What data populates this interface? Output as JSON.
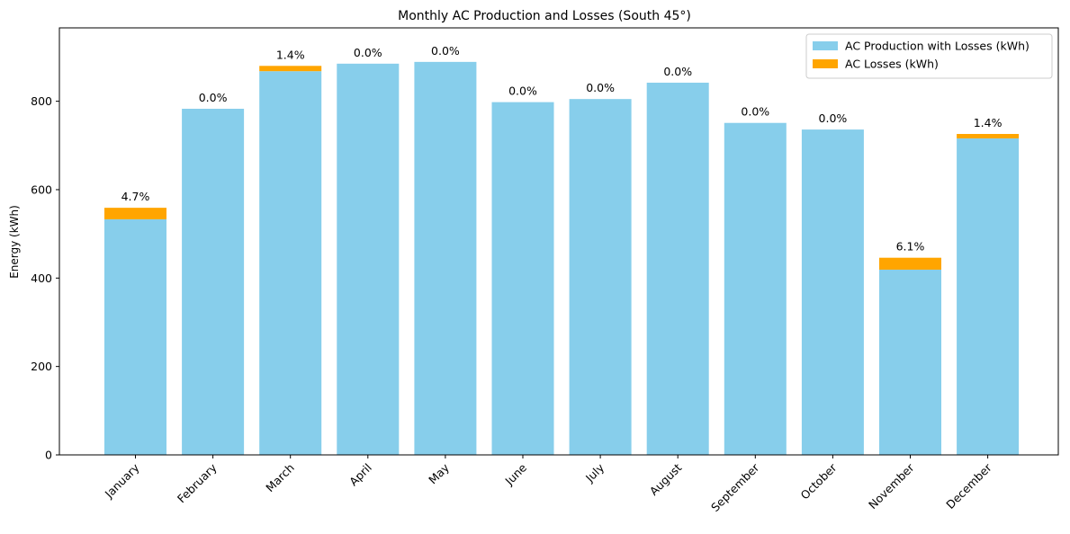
{
  "chart_data": {
    "type": "bar",
    "stacked": true,
    "title": "Monthly AC Production and Losses (South 45°)",
    "xlabel": "",
    "ylabel": "Energy (kWh)",
    "ylim": [
      0,
      966
    ],
    "yticks": [
      0,
      200,
      400,
      600,
      800
    ],
    "categories": [
      "January",
      "February",
      "March",
      "April",
      "May",
      "June",
      "July",
      "August",
      "September",
      "October",
      "November",
      "December"
    ],
    "series": [
      {
        "name": "AC Production with Losses (kWh)",
        "color": "#87ceeb",
        "values": [
          533,
          783,
          868,
          885,
          889,
          798,
          805,
          842,
          751,
          736,
          419,
          716
        ]
      },
      {
        "name": "AC Losses (kWh)",
        "color": "#ffa500",
        "values": [
          26,
          0,
          12,
          0,
          0,
          0,
          0,
          0,
          0,
          0,
          27,
          10
        ]
      }
    ],
    "data_labels": [
      "4.7%",
      "0.0%",
      "1.4%",
      "0.0%",
      "0.0%",
      "0.0%",
      "0.0%",
      "0.0%",
      "0.0%",
      "0.0%",
      "6.1%",
      "1.4%"
    ],
    "legend": {
      "position": "top-right"
    },
    "grid": false
  }
}
